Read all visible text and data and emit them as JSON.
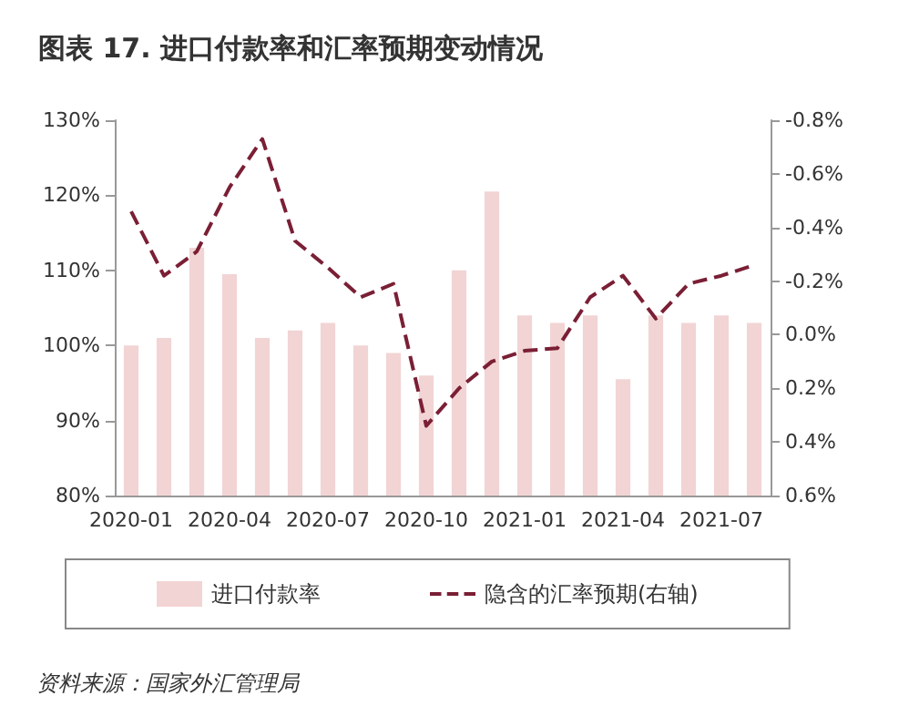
{
  "chart_data": {
    "type": "bar",
    "title": "图表 17. 进口付款率和汇率预期变动情况",
    "categories": [
      "2020-01",
      null,
      null,
      "2020-04",
      null,
      null,
      "2020-07",
      null,
      null,
      "2020-10",
      null,
      null,
      "2021-01",
      null,
      null,
      "2021-04",
      null,
      null,
      "2021-07",
      null
    ],
    "series": [
      {
        "name": "进口付款率",
        "color": "#f2d4d4",
        "values": [
          100,
          101,
          113,
          109.5,
          101,
          102,
          103,
          100,
          99,
          96,
          110,
          120.5,
          104,
          103,
          104,
          95.5,
          104,
          103,
          104,
          103
        ]
      },
      {
        "name": "隐含的汇率预期(右轴)",
        "type": "line",
        "axis": "y2",
        "color": "#7a1f35",
        "line_style": "dashed",
        "values": [
          -0.46,
          -0.22,
          -0.31,
          -0.55,
          -0.73,
          -0.35,
          -0.25,
          -0.14,
          -0.19,
          0.34,
          0.2,
          0.1,
          0.06,
          0.05,
          -0.14,
          -0.22,
          -0.06,
          -0.19,
          -0.22,
          -0.26
        ]
      }
    ],
    "ylim": [
      80,
      130
    ],
    "yticks": [
      {
        "value": 80,
        "label": "80%"
      },
      {
        "value": 90,
        "label": "90%"
      },
      {
        "value": 100,
        "label": "100%"
      },
      {
        "value": 110,
        "label": "110%"
      },
      {
        "value": 120,
        "label": "120%"
      },
      {
        "value": 130,
        "label": "130%"
      }
    ],
    "y2lim": [
      0.6,
      -0.8
    ],
    "y2ticks": [
      {
        "value": -0.8,
        "label": "-0.8%"
      },
      {
        "value": -0.6,
        "label": "-0.6%"
      },
      {
        "value": -0.4,
        "label": "-0.4%"
      },
      {
        "value": -0.2,
        "label": "-0.2%"
      },
      {
        "value": 0,
        "label": "0.0%"
      },
      {
        "value": 0.2,
        "label": "0.2%"
      },
      {
        "value": 0.4,
        "label": "0.4%"
      },
      {
        "value": 0.6,
        "label": "0.6%"
      }
    ],
    "legend": "bottom",
    "marker": "none",
    "annotations": [
      "资料来源：国家外汇管理局"
    ]
  }
}
